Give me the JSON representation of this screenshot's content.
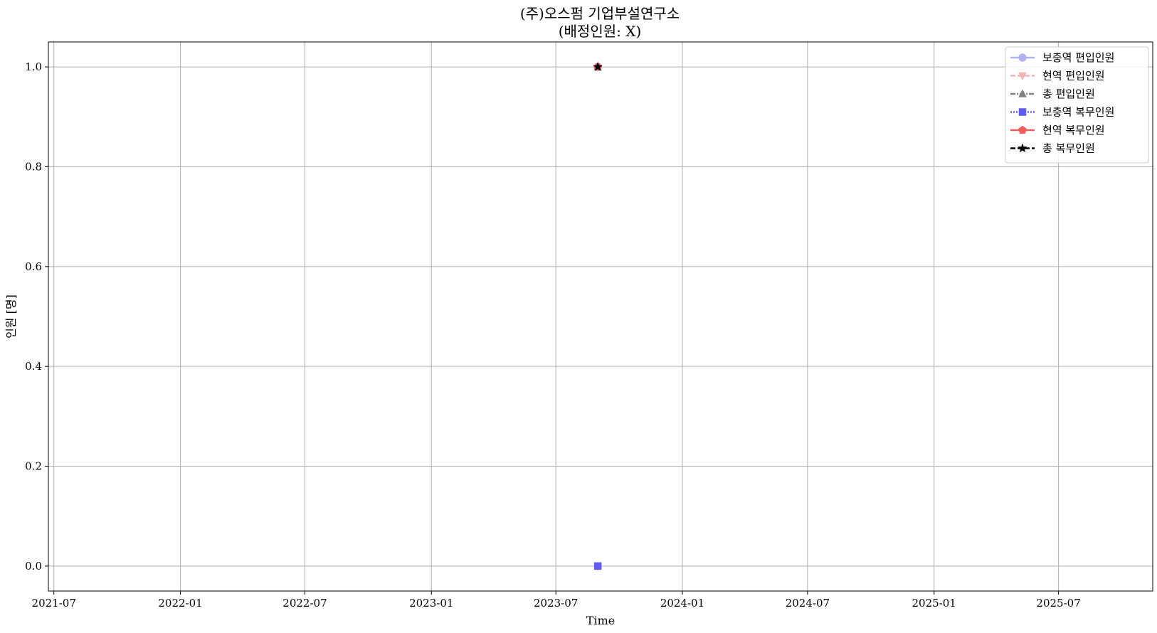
{
  "chart_data": {
    "type": "line",
    "title": "(주)오스펌 기업부설연구소",
    "subtitle": "(배정인원: X)",
    "xlabel": "Time",
    "ylabel": "인원 [명]",
    "x_type": "date",
    "xlim": [
      "2021-06-23",
      "2025-11-15"
    ],
    "ylim": [
      -0.05,
      1.05
    ],
    "x_ticks": [
      "2021-07",
      "2022-01",
      "2022-07",
      "2023-01",
      "2023-07",
      "2024-01",
      "2024-07",
      "2025-01",
      "2025-07"
    ],
    "y_ticks": [
      "0.0",
      "0.2",
      "0.4",
      "0.6",
      "0.8",
      "1.0"
    ],
    "grid": true,
    "legend_position": "top-right",
    "series": [
      {
        "name": "보충역 편입인원",
        "color": "#b3b3f2",
        "line_style": "solid",
        "marker": "circle",
        "x": [
          "2023-08-31"
        ],
        "y": [
          1
        ]
      },
      {
        "name": "현역 편입인원",
        "color": "#f2b3b3",
        "line_style": "dashed",
        "marker": "triangle-down",
        "x": [
          "2023-08-31"
        ],
        "y": [
          0
        ]
      },
      {
        "name": "총 편입인원",
        "color": "#808080",
        "line_style": "dashdot",
        "marker": "triangle-up",
        "x": [
          "2023-08-31"
        ],
        "y": [
          1
        ]
      },
      {
        "name": "보충역 복무인원",
        "color": "#5c5cf2",
        "line_style": "dotted",
        "marker": "square",
        "x": [
          "2023-08-31"
        ],
        "y": [
          0
        ]
      },
      {
        "name": "현역 복무인원",
        "color": "#f25c5c",
        "line_style": "solid",
        "marker": "pentagon",
        "x": [
          "2023-08-31"
        ],
        "y": [
          1
        ]
      },
      {
        "name": "총 복무인원",
        "color": "#000000",
        "line_style": "dashed",
        "marker": "star",
        "x": [
          "2023-08-31"
        ],
        "y": [
          1
        ]
      }
    ]
  }
}
